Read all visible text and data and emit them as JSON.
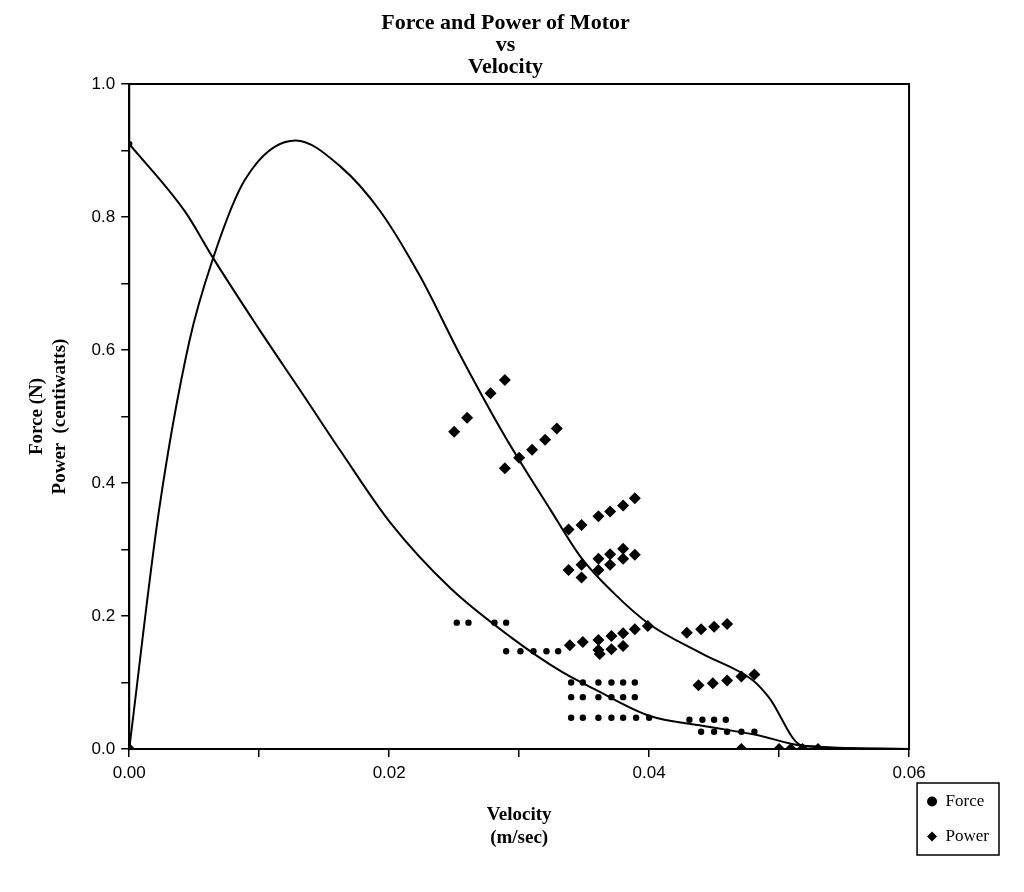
{
  "chart_data": {
    "type": "scatter",
    "title": "Force and Power of Motor\nvs\nVelocity",
    "xlabel": "Velocity\n(m/sec)",
    "ylabel": "Force (N)\nPower  (centiwatts)",
    "xlim": [
      0,
      0.06
    ],
    "xticks": [
      {
        "value": 0,
        "label": "0.00"
      },
      {
        "value": 0.01,
        "label": null
      },
      {
        "value": 0.02,
        "label": "0.02"
      },
      {
        "value": 0.03,
        "label": null
      },
      {
        "value": 0.04,
        "label": "0.04"
      },
      {
        "value": 0.05,
        "label": null
      },
      {
        "value": 0.06,
        "label": "0.06"
      }
    ],
    "ylim": [
      0,
      1
    ],
    "yticks": [
      {
        "value": 0,
        "label": "0.0"
      },
      {
        "value": 0.1,
        "label": null
      },
      {
        "value": 0.2,
        "label": "0.2"
      },
      {
        "value": 0.3,
        "label": null
      },
      {
        "value": 0.4,
        "label": "0.4"
      },
      {
        "value": 0.5,
        "label": null
      },
      {
        "value": 0.6,
        "label": "0.6"
      },
      {
        "value": 0.7,
        "label": null
      },
      {
        "value": 0.8,
        "label": "0.8"
      },
      {
        "value": 0.9,
        "label": null
      },
      {
        "value": 1,
        "label": "1.0"
      }
    ],
    "grid": false,
    "legend": "bottom right",
    "series": [
      {
        "name": "Force",
        "type": "scatter",
        "marker": "circle",
        "color": "#000000",
        "x": [
          0,
          0.0252,
          0.0261,
          0.0281,
          0.029,
          0.029,
          0.0301,
          0.0311,
          0.0321,
          0.033,
          0.034,
          0.0349,
          0.0361,
          0.0371,
          0.038,
          0.0389,
          0.034,
          0.0349,
          0.0361,
          0.0371,
          0.038,
          0.0389,
          0.034,
          0.0349,
          0.0361,
          0.0371,
          0.038,
          0.039,
          0.04,
          0.0431,
          0.0441,
          0.045,
          0.0459,
          0.044,
          0.045,
          0.046,
          0.0471,
          0.0481
        ],
        "values": [
          0.91,
          0.19,
          0.19,
          0.19,
          0.19,
          0.147,
          0.147,
          0.147,
          0.147,
          0.147,
          0.1,
          0.1,
          0.1,
          0.1,
          0.1,
          0.1,
          0.078,
          0.078,
          0.078,
          0.078,
          0.078,
          0.078,
          0.047,
          0.047,
          0.047,
          0.047,
          0.047,
          0.047,
          0.047,
          0.044,
          0.044,
          0.044,
          0.044,
          0.026,
          0.026,
          0.026,
          0.026,
          0.026
        ]
      },
      {
        "name": "Power",
        "type": "scatter",
        "marker": "diamond",
        "color": "#000000",
        "x": [
          0,
          0.025,
          0.026,
          0.0278,
          0.0289,
          0.0289,
          0.03,
          0.031,
          0.032,
          0.0329,
          0.0338,
          0.0348,
          0.0361,
          0.037,
          0.038,
          0.0389,
          0.0338,
          0.0348,
          0.0348,
          0.0361,
          0.0361,
          0.037,
          0.037,
          0.038,
          0.038,
          0.0389,
          0.0339,
          0.0349,
          0.0361,
          0.0361,
          0.0362,
          0.0371,
          0.0371,
          0.038,
          0.038,
          0.0389,
          0.0399,
          0.0429,
          0.044,
          0.045,
          0.046,
          0.0438,
          0.0449,
          0.046,
          0.0471,
          0.0481,
          0.0471,
          0.05,
          0.0509,
          0.0518,
          0.053
        ],
        "values": [
          0,
          0.477,
          0.498,
          0.535,
          0.555,
          0.422,
          0.438,
          0.45,
          0.465,
          0.482,
          0.33,
          0.337,
          0.35,
          0.357,
          0.366,
          0.377,
          0.269,
          0.277,
          0.258,
          0.286,
          0.269,
          0.293,
          0.277,
          0.301,
          0.286,
          0.292,
          0.156,
          0.161,
          0.149,
          0.164,
          0.143,
          0.17,
          0.15,
          0.174,
          0.155,
          0.18,
          0.185,
          0.175,
          0.18,
          0.184,
          0.188,
          0.096,
          0.099,
          0.103,
          0.109,
          0.112,
          0,
          0,
          0,
          0,
          0
        ]
      },
      {
        "type": "line",
        "marker": "none",
        "color": "#000000",
        "x": [
          0,
          0.0043,
          0.0064,
          0.01,
          0.0132,
          0.0163,
          0.0201,
          0.0247,
          0.0293,
          0.0332,
          0.0358,
          0.04,
          0.0441,
          0.0483,
          0.0518,
          0.06
        ],
        "values": [
          0.91,
          0.808,
          0.74,
          0.631,
          0.538,
          0.447,
          0.34,
          0.242,
          0.169,
          0.117,
          0.09,
          0.05,
          0.035,
          0.021,
          0.005,
          0
        ]
      },
      {
        "type": "line",
        "marker": "none",
        "color": "#000000",
        "x": [
          0,
          0.0023,
          0.0046,
          0.0064,
          0.0089,
          0.0128,
          0.0163,
          0.0193,
          0.0224,
          0.0255,
          0.029,
          0.0324,
          0.0348,
          0.0373,
          0.04,
          0.0441,
          0.048,
          0.0492,
          0.0518,
          0.06
        ],
        "values": [
          0,
          0.36,
          0.611,
          0.735,
          0.856,
          0.915,
          0.875,
          0.809,
          0.71,
          0.591,
          0.467,
          0.36,
          0.287,
          0.234,
          0.188,
          0.143,
          0.103,
          0.078,
          0.005,
          0
        ]
      }
    ]
  }
}
